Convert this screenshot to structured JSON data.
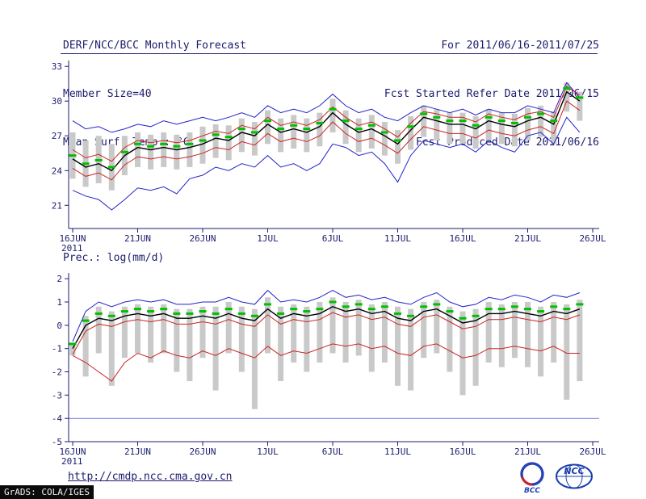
{
  "header": {
    "title": "DERF/NCC/BCC Monthly Forecast",
    "member_size": "Member Size=40",
    "period": "For 2011/06/16-2011/07/25",
    "refer_date": "Fcst Started Refer Date 2011/06/15",
    "produced_date": "Fcst Produced Date 2011/06/16"
  },
  "footer": {
    "url": "http://cmdp.ncc.cma.gov.cn",
    "grads_credit": "GrADS: COLA/IGES",
    "logos": {
      "bcc_label": "BCC",
      "ncc_label": "NCC"
    }
  },
  "colors": {
    "text": "#1b1b6e",
    "blue": "#2222cc",
    "red": "#cc2222",
    "black": "#000000",
    "green": "#00c000",
    "gray": "#c9c9c9"
  },
  "chart_data": [
    {
      "type": "line",
      "panel_name": "temp-panel",
      "title": "Mean Surf. Temp.: °C",
      "xlabel": "",
      "ylabel": "",
      "ylim": [
        19.0,
        33.5
      ],
      "y_ticks": [
        21,
        24,
        27,
        30,
        33
      ],
      "x_tick_labels": [
        "16JUN",
        "21JUN",
        "26JUN",
        "1JUL",
        "6JUL",
        "11JUL",
        "16JUL",
        "21JUL",
        "26JUL"
      ],
      "x_tick_positions": [
        0,
        5,
        10,
        15,
        20,
        25,
        30,
        35,
        40
      ],
      "x_year_label": "2011",
      "n_days": 40,
      "grid": false,
      "legend": "none",
      "series": [
        {
          "key": "min",
          "name": "ensemble minimum (blue)",
          "color": "#2222cc",
          "values": [
            22.3,
            21.8,
            21.5,
            20.6,
            21.5,
            22.5,
            22.3,
            22.6,
            22.0,
            23.3,
            23.6,
            24.3,
            24.0,
            24.6,
            24.3,
            25.3,
            24.3,
            24.6,
            24.0,
            24.6,
            26.3,
            26.0,
            25.3,
            25.6,
            24.6,
            23.0,
            25.3,
            26.6,
            26.3,
            26.0,
            26.3,
            25.6,
            26.6,
            26.0,
            25.6,
            27.0,
            27.3,
            26.3,
            28.6,
            27.3
          ]
        },
        {
          "key": "max",
          "name": "ensemble maximum (blue)",
          "color": "#2222cc",
          "values": [
            28.3,
            27.6,
            27.8,
            27.3,
            27.6,
            28.0,
            27.8,
            28.3,
            28.0,
            28.3,
            28.6,
            28.3,
            28.6,
            29.0,
            28.6,
            29.6,
            29.0,
            29.3,
            29.0,
            29.6,
            30.6,
            29.6,
            29.0,
            29.3,
            28.6,
            28.3,
            29.0,
            29.6,
            29.3,
            29.0,
            29.3,
            28.8,
            29.3,
            29.0,
            29.0,
            29.6,
            29.3,
            29.0,
            31.6,
            30.3
          ]
        },
        {
          "key": "p25",
          "name": "lower quartile (red)",
          "color": "#cc2222",
          "values": [
            24.2,
            23.5,
            23.8,
            23.2,
            24.5,
            25.2,
            25.0,
            25.2,
            25.0,
            25.2,
            25.5,
            26.0,
            25.8,
            26.5,
            26.2,
            27.2,
            26.5,
            26.8,
            26.5,
            27.0,
            28.2,
            27.2,
            26.5,
            26.8,
            26.2,
            25.5,
            26.7,
            27.8,
            27.5,
            27.2,
            27.2,
            26.8,
            27.5,
            27.2,
            27.0,
            27.5,
            27.8,
            27.2,
            30.0,
            29.2
          ]
        },
        {
          "key": "p75",
          "name": "upper quartile (red)",
          "color": "#cc2222",
          "values": [
            25.8,
            25.1,
            25.4,
            24.8,
            26.0,
            26.6,
            26.4,
            26.6,
            26.4,
            26.6,
            27.0,
            27.4,
            27.2,
            27.9,
            27.6,
            28.6,
            27.9,
            28.2,
            27.9,
            28.4,
            29.5,
            28.6,
            27.9,
            28.2,
            27.6,
            26.9,
            28.1,
            29.1,
            28.9,
            28.6,
            28.6,
            28.2,
            28.9,
            28.6,
            28.4,
            28.9,
            29.1,
            28.6,
            31.3,
            30.5
          ]
        },
        {
          "key": "mean",
          "name": "ensemble median (black)",
          "color": "#000000",
          "values": [
            25.0,
            24.3,
            24.6,
            24.0,
            25.3,
            26.0,
            25.8,
            26.0,
            25.8,
            26.0,
            26.3,
            26.8,
            26.6,
            27.3,
            27.0,
            28.0,
            27.3,
            27.6,
            27.3,
            27.8,
            29.0,
            28.0,
            27.3,
            27.6,
            27.0,
            26.3,
            27.5,
            28.6,
            28.3,
            28.0,
            28.0,
            27.6,
            28.3,
            28.0,
            27.8,
            28.3,
            28.6,
            28.0,
            30.8,
            30.0
          ]
        }
      ],
      "green_markers": [
        25.3,
        24.6,
        24.9,
        24.3,
        25.6,
        26.3,
        26.1,
        26.3,
        26.1,
        26.3,
        26.6,
        27.1,
        26.9,
        27.6,
        27.3,
        28.3,
        27.6,
        27.9,
        27.6,
        28.1,
        29.3,
        28.3,
        27.6,
        27.9,
        27.3,
        26.6,
        27.8,
        28.9,
        28.6,
        28.3,
        28.3,
        27.9,
        28.6,
        28.3,
        28.1,
        28.6,
        28.9,
        28.3,
        31.1,
        30.3
      ],
      "bars": {
        "top": [
          27.3,
          26.6,
          27.0,
          26.3,
          27.0,
          27.3,
          27.1,
          27.3,
          27.1,
          27.3,
          27.8,
          28.0,
          27.9,
          28.5,
          28.2,
          29.2,
          28.5,
          28.8,
          28.5,
          29.0,
          30.2,
          29.2,
          28.5,
          28.8,
          28.2,
          27.5,
          28.7,
          29.6,
          29.3,
          29.0,
          29.0,
          28.7,
          29.3,
          29.0,
          28.9,
          29.4,
          29.6,
          29.1,
          31.6,
          30.8
        ],
        "bottom": [
          23.3,
          22.6,
          22.9,
          22.3,
          23.6,
          24.3,
          24.1,
          24.3,
          24.1,
          24.3,
          24.6,
          25.1,
          24.9,
          25.6,
          25.3,
          26.3,
          25.6,
          25.9,
          25.6,
          26.1,
          27.3,
          26.3,
          25.6,
          25.9,
          25.3,
          24.6,
          25.8,
          26.9,
          26.6,
          26.3,
          26.3,
          25.9,
          26.6,
          26.3,
          26.1,
          26.6,
          26.9,
          26.3,
          29.1,
          28.3
        ]
      }
    },
    {
      "type": "line",
      "panel_name": "precip-panel",
      "title": "Prec.: log(mm/d)",
      "xlabel": "",
      "ylabel": "",
      "ylim": [
        -5.0,
        2.25
      ],
      "y_ticks": [
        2,
        1,
        0,
        -1,
        -2,
        -3,
        -4,
        -5
      ],
      "x_tick_labels": [
        "16JUN",
        "21JUN",
        "26JUN",
        "1JUL",
        "6JUL",
        "11JUL",
        "16JUL",
        "21JUL",
        "26JUL"
      ],
      "x_tick_positions": [
        0,
        5,
        10,
        15,
        20,
        25,
        30,
        35,
        40
      ],
      "x_year_label": "2011",
      "n_days": 40,
      "grid": false,
      "legend": "none",
      "baseline": -4,
      "series": [
        {
          "key": "max",
          "name": "ensemble maximum (blue)",
          "color": "#2222cc",
          "values": [
            -0.7,
            0.6,
            1.0,
            0.8,
            1.0,
            1.1,
            1.0,
            1.1,
            0.9,
            0.9,
            1.0,
            1.0,
            1.2,
            1.0,
            0.9,
            1.5,
            1.0,
            1.1,
            1.0,
            1.2,
            1.5,
            1.2,
            1.3,
            1.1,
            1.2,
            1.0,
            0.9,
            1.2,
            1.4,
            1.0,
            0.8,
            0.9,
            1.2,
            1.1,
            1.3,
            1.2,
            1.0,
            1.3,
            1.2,
            1.4
          ]
        },
        {
          "key": "p25",
          "name": "lower quartile (red)",
          "color": "#cc2222",
          "values": [
            -1.3,
            -1.6,
            -2.0,
            -2.4,
            -1.6,
            -1.2,
            -1.4,
            -1.1,
            -1.3,
            -1.4,
            -1.1,
            -1.3,
            -1.0,
            -1.2,
            -1.4,
            -0.9,
            -1.3,
            -1.1,
            -1.2,
            -1.0,
            -0.8,
            -0.9,
            -0.8,
            -1.0,
            -0.9,
            -1.2,
            -1.3,
            -0.9,
            -0.8,
            -1.1,
            -1.4,
            -1.3,
            -1.0,
            -1.0,
            -0.9,
            -1.0,
            -1.1,
            -0.9,
            -1.2,
            -1.2
          ]
        },
        {
          "key": "p75",
          "name": "upper quartile (red)",
          "color": "#cc2222",
          "values": [
            -1.25,
            -0.25,
            0.05,
            -0.05,
            0.15,
            0.25,
            0.15,
            0.25,
            0.05,
            0.05,
            0.15,
            0.05,
            0.25,
            0.05,
            -0.05,
            0.45,
            0.05,
            0.25,
            0.15,
            0.25,
            0.55,
            0.35,
            0.45,
            0.25,
            0.35,
            0.05,
            -0.05,
            0.35,
            0.45,
            0.15,
            -0.15,
            -0.05,
            0.25,
            0.25,
            0.35,
            0.25,
            0.15,
            0.35,
            0.25,
            0.45
          ]
        },
        {
          "key": "mean",
          "name": "ensemble median (black)",
          "color": "#000000",
          "values": [
            -1.0,
            0.0,
            0.3,
            0.2,
            0.4,
            0.5,
            0.4,
            0.5,
            0.3,
            0.3,
            0.4,
            0.3,
            0.5,
            0.3,
            0.2,
            0.7,
            0.3,
            0.5,
            0.4,
            0.5,
            0.8,
            0.6,
            0.7,
            0.5,
            0.6,
            0.3,
            0.2,
            0.6,
            0.7,
            0.4,
            0.1,
            0.2,
            0.5,
            0.5,
            0.6,
            0.5,
            0.4,
            0.6,
            0.5,
            0.7
          ]
        }
      ],
      "green_markers": [
        -0.8,
        0.2,
        0.5,
        0.4,
        0.6,
        0.7,
        0.6,
        0.7,
        0.5,
        0.5,
        0.6,
        0.5,
        0.7,
        0.5,
        0.4,
        0.9,
        0.5,
        0.7,
        0.6,
        0.7,
        1.0,
        0.8,
        0.9,
        0.7,
        0.8,
        0.5,
        0.4,
        0.8,
        0.9,
        0.6,
        0.3,
        0.4,
        0.7,
        0.7,
        0.8,
        0.7,
        0.6,
        0.8,
        0.7,
        0.9
      ],
      "bars": {
        "top": [
          -0.8,
          0.4,
          0.8,
          0.6,
          0.8,
          0.9,
          0.8,
          0.9,
          0.7,
          0.7,
          0.8,
          0.8,
          1.0,
          0.8,
          0.7,
          1.2,
          0.8,
          0.9,
          0.8,
          1.0,
          1.2,
          1.0,
          1.1,
          0.9,
          1.0,
          0.8,
          0.7,
          1.0,
          1.1,
          0.8,
          0.6,
          0.7,
          1.0,
          0.9,
          1.0,
          1.0,
          0.8,
          1.0,
          0.9,
          1.1
        ],
        "bottom": [
          -1.3,
          -2.2,
          -1.2,
          -2.6,
          -1.4,
          -1.2,
          -1.6,
          -1.2,
          -2.0,
          -2.4,
          -1.4,
          -2.8,
          -1.2,
          -2.0,
          -3.6,
          -1.2,
          -2.4,
          -1.6,
          -2.0,
          -1.6,
          -1.2,
          -1.6,
          -1.3,
          -2.0,
          -1.6,
          -2.6,
          -2.8,
          -1.4,
          -1.2,
          -2.0,
          -3.0,
          -2.6,
          -1.6,
          -1.8,
          -1.4,
          -1.8,
          -2.2,
          -1.6,
          -3.2,
          -2.4
        ]
      }
    }
  ]
}
